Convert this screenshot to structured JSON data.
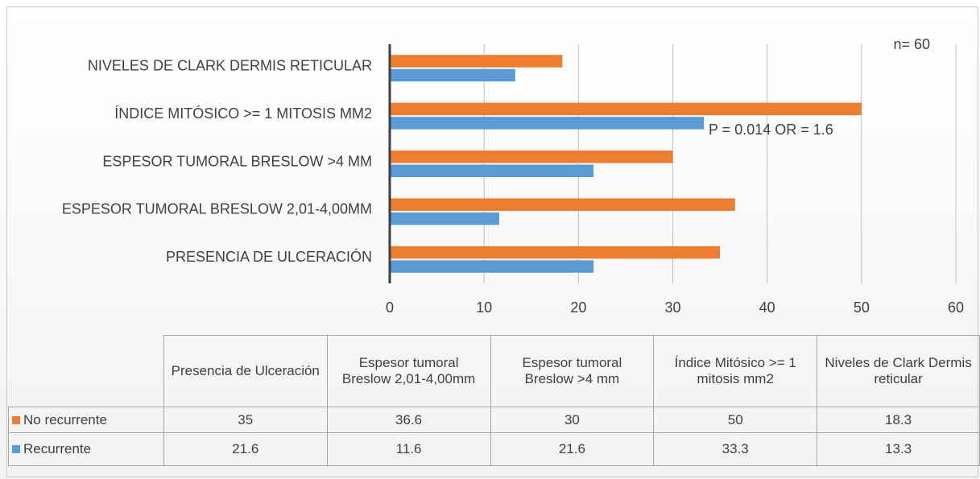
{
  "chart_data": {
    "type": "barh",
    "annotations": [
      "n= 60",
      "P = 0.014 OR = 1.6"
    ],
    "categories": [
      "Presencia de Ulceración",
      "Espesor tumoral Breslow 2,01-4,00mm",
      "Espesor tumoral Breslow >4 mm",
      "Índice Mitósico >= 1 mitosis mm2",
      "Niveles de Clark Dermis reticular"
    ],
    "series": [
      {
        "name": "No recurrente",
        "color": "#ed7d31",
        "values": [
          35,
          36.6,
          30,
          50,
          18.3
        ]
      },
      {
        "name": "Recurrente",
        "color": "#5b9bd5",
        "values": [
          21.6,
          11.6,
          21.6,
          33.3,
          13.3
        ]
      }
    ],
    "xlim": [
      0,
      60
    ],
    "xticks": [
      0,
      10,
      20,
      30,
      40,
      50,
      60
    ],
    "grid": true,
    "data_table": true
  }
}
